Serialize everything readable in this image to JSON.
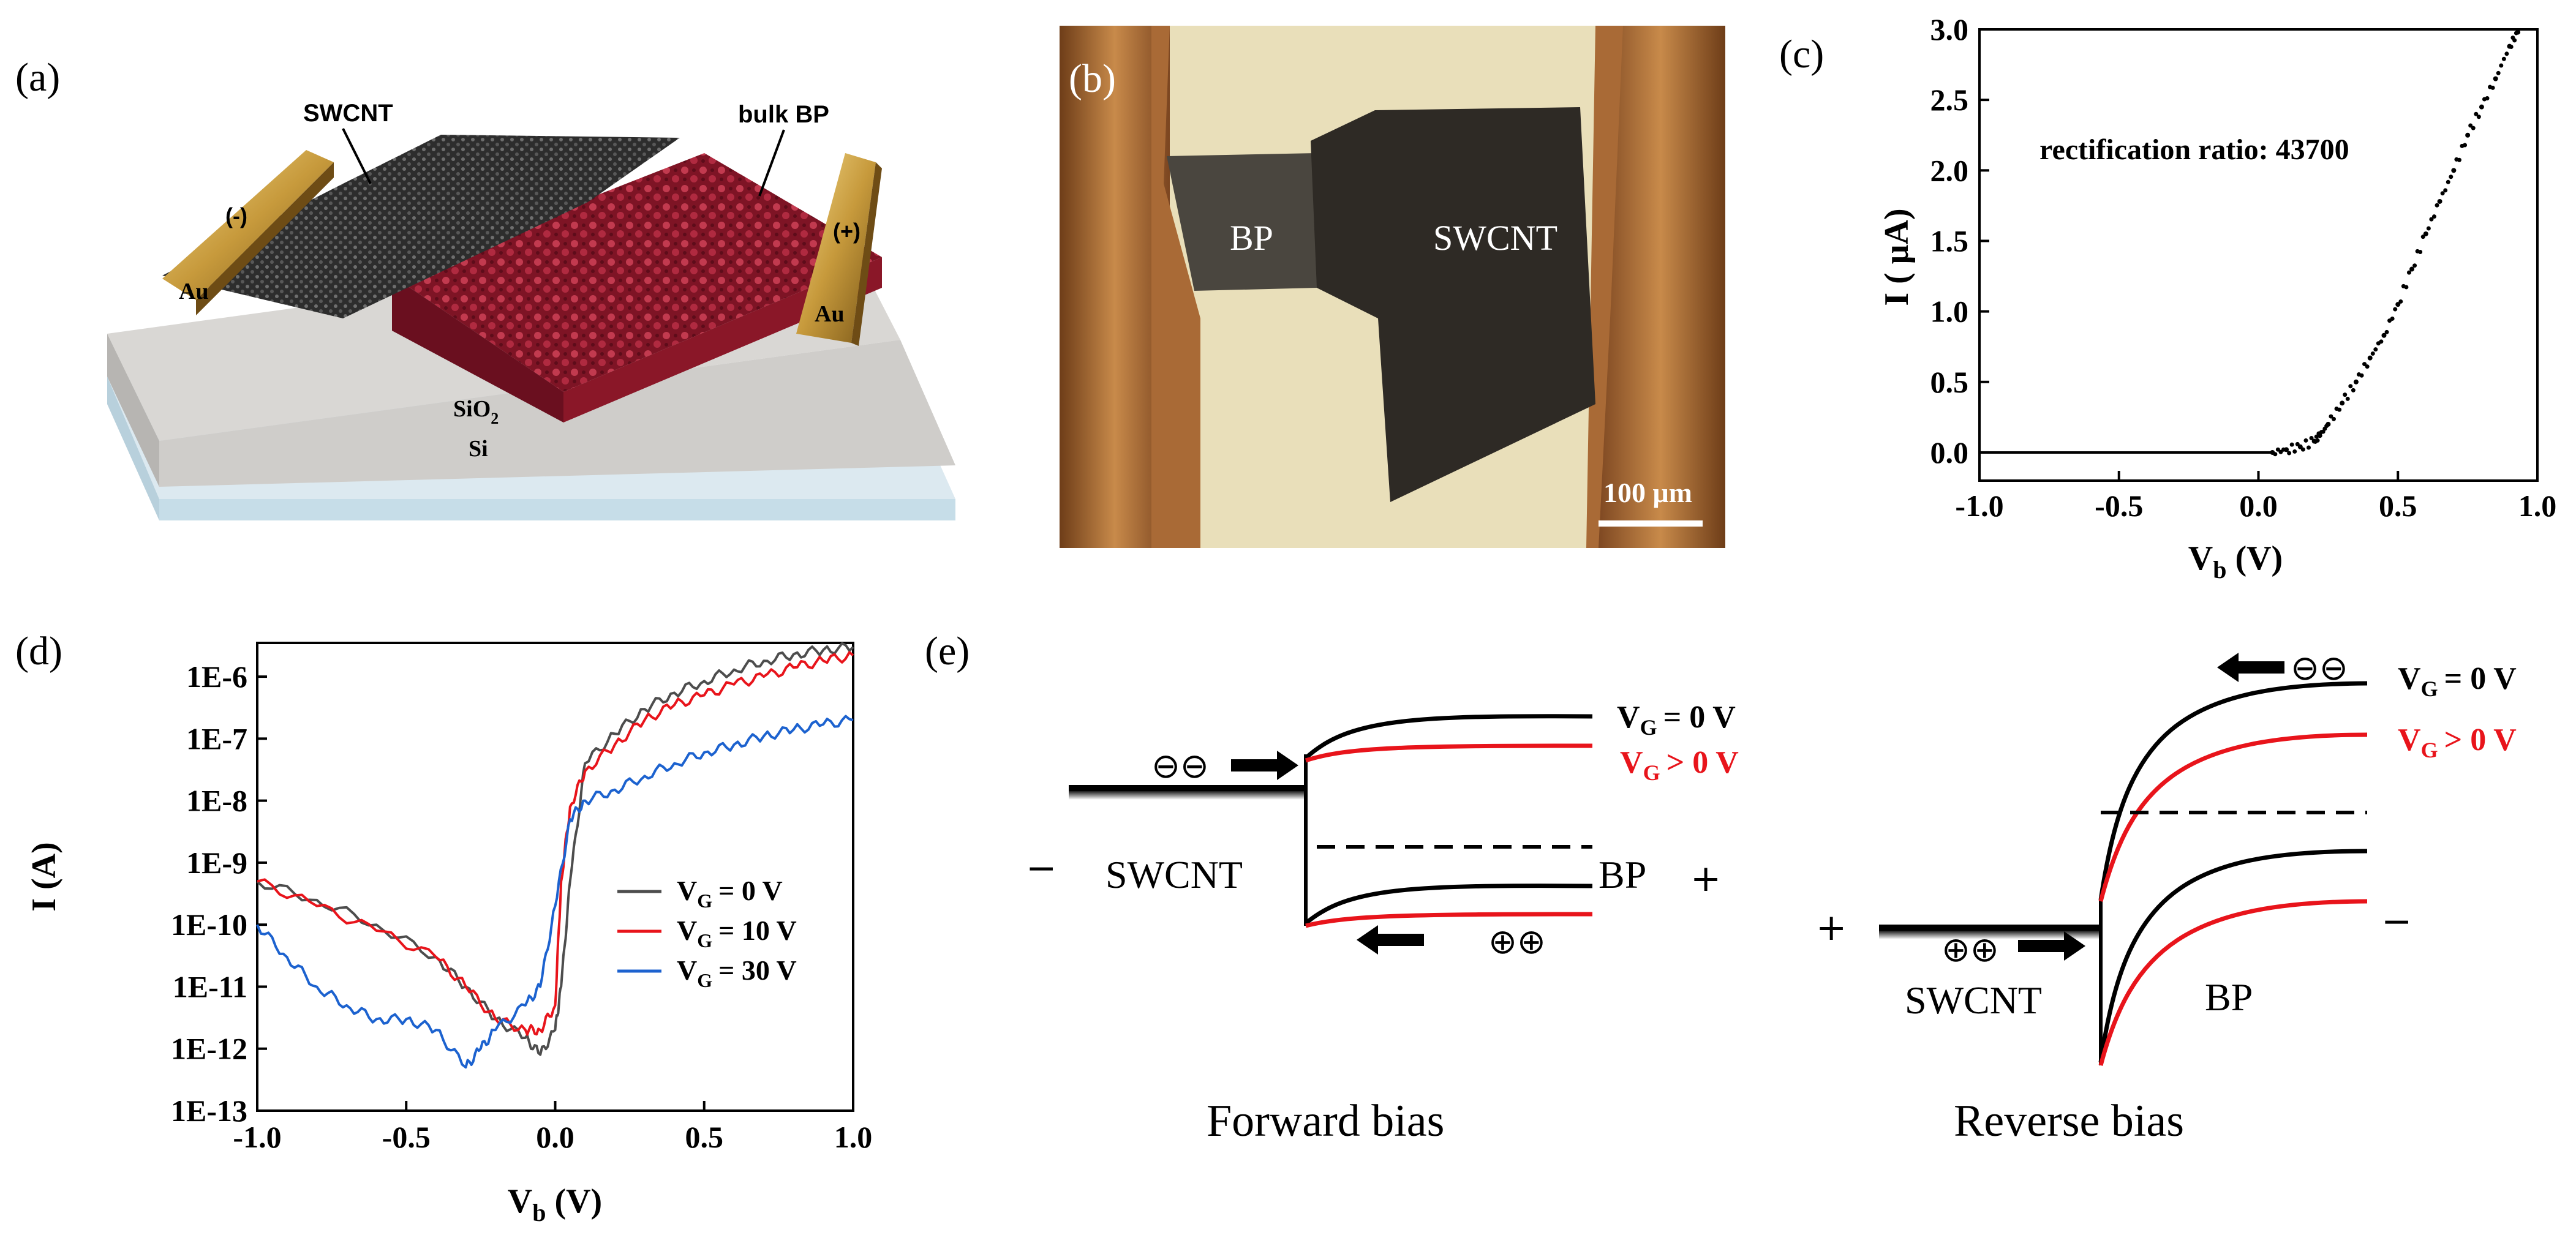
{
  "panel_labels": {
    "a": "(a)",
    "b": "(b)",
    "c": "(c)",
    "d": "(d)",
    "e": "(e)"
  },
  "panel_a": {
    "swcnt": "SWCNT",
    "bulk_bp": "bulk BP",
    "neg": "(-)",
    "pos": "(+)",
    "au_left": "Au",
    "au_right": "Au",
    "sio2_main": "SiO",
    "sio2_sub": "2",
    "si": "Si",
    "colors": {
      "bp": "#9b1b2f",
      "swcnt": "#3a3a3a",
      "au": "#c79a3c",
      "sio2": "#cfcdca",
      "si": "#c6dde8"
    }
  },
  "panel_b": {
    "bp": "BP",
    "swcnt": "SWCNT",
    "scale": "100 μm",
    "colors": {
      "electrode": "#b0713a",
      "substrate": "#efe6c8",
      "flake": "#2e2a25"
    }
  },
  "panel_c": {
    "annotation": "rectification ratio: 43700"
  },
  "panel_d": {
    "legend_prefix": "V"
  },
  "panel_e": {
    "fwd": {
      "vg0": "= 0 V",
      "vgp": "> 0 V",
      "minus": "−",
      "plus": "+",
      "swcnt": "SWCNT",
      "bp": "BP",
      "title": "Forward bias",
      "e_carriers": "⊖⊖",
      "h_carriers": "⊕⊕"
    },
    "rev": {
      "vg0": "= 0 V",
      "vgp": "> 0 V",
      "plus": "+",
      "minus": "−",
      "swcnt": "SWCNT",
      "bp": "BP",
      "title": "Reverse bias",
      "e_carriers": "⊖⊖",
      "h_carriers": "⊕⊕"
    },
    "colors": {
      "vg0": "#000000",
      "vgp": "#e8141b"
    }
  },
  "chart_data": [
    {
      "id": "c",
      "type": "scatter",
      "title": "",
      "xlabel_main": "V",
      "xlabel_sub": "b",
      "xlabel_unit": " (V)",
      "ylabel": "I ( μA)",
      "xlim": [
        -1.0,
        1.0
      ],
      "ylim": [
        -0.2,
        3.0
      ],
      "xticks": [
        "-1.0",
        "-0.5",
        "0.0",
        "0.5",
        "1.0"
      ],
      "xtick_values": [
        -1.0,
        -0.5,
        0.0,
        0.5,
        1.0
      ],
      "yticks": [
        "0.0",
        "0.5",
        "1.0",
        "1.5",
        "2.0",
        "2.5",
        "3.0"
      ],
      "ytick_values": [
        0.0,
        0.5,
        1.0,
        1.5,
        2.0,
        2.5,
        3.0
      ],
      "x": [
        -1.0,
        0.05,
        0.1,
        0.15,
        0.2,
        0.22,
        0.25,
        0.3,
        0.35,
        0.4,
        0.45,
        0.5,
        0.55,
        0.6,
        0.65,
        0.7,
        0.75,
        0.8,
        0.85,
        0.9,
        0.93
      ],
      "y": [
        0.0,
        0.0,
        0.02,
        0.04,
        0.08,
        0.12,
        0.2,
        0.35,
        0.5,
        0.67,
        0.83,
        1.05,
        1.3,
        1.55,
        1.78,
        2.0,
        2.25,
        2.45,
        2.65,
        2.88,
        2.98
      ]
    },
    {
      "id": "d",
      "type": "line",
      "yscale": "log",
      "title": "",
      "xlabel_main": "V",
      "xlabel_sub": "b",
      "xlabel_unit": " (V)",
      "ylabel": "I (A)",
      "xlim": [
        -1.0,
        1.0
      ],
      "ylim": [
        1e-13,
        3.5e-06
      ],
      "xticks": [
        "-1.0",
        "-0.5",
        "0.0",
        "0.5",
        "1.0"
      ],
      "xtick_values": [
        -1.0,
        -0.5,
        0.0,
        0.5,
        1.0
      ],
      "yticks": [
        "1E-6",
        "1E-7",
        "1E-8",
        "1E-9",
        "1E-10",
        "1E-11",
        "1E-12",
        "1E-13"
      ],
      "ytick_values": [
        1e-06,
        1e-07,
        1e-08,
        1e-09,
        1e-10,
        1e-11,
        1e-12,
        1e-13
      ],
      "legend_position": "right",
      "series": [
        {
          "name": "V_G = 0 V",
          "legend_sub": "G",
          "legend_val": "=  0 V",
          "color": "#4d4d4d",
          "x": [
            -1.0,
            -0.8,
            -0.6,
            -0.4,
            -0.3,
            -0.2,
            -0.1,
            -0.05,
            0.0,
            0.02,
            0.05,
            0.1,
            0.2,
            0.3,
            0.4,
            0.5,
            0.6,
            0.7,
            0.8,
            0.9,
            1.0
          ],
          "y": [
            5e-10,
            2.5e-10,
            1e-10,
            3e-11,
            1e-11,
            3e-12,
            1.5e-12,
            8e-13,
            2e-12,
            1e-11,
            5e-10,
            4e-08,
            1.2e-07,
            3e-07,
            5.5e-07,
            8.5e-07,
            1.3e-06,
            1.8e-06,
            2.3e-06,
            2.7e-06,
            3e-06
          ]
        },
        {
          "name": "V_G = 10 V",
          "legend_sub": "G",
          "legend_val": "= 10 V",
          "color": "#e8141b",
          "x": [
            -1.0,
            -0.8,
            -0.6,
            -0.4,
            -0.3,
            -0.2,
            -0.1,
            -0.05,
            0.0,
            0.02,
            0.05,
            0.1,
            0.2,
            0.3,
            0.4,
            0.5,
            0.6,
            0.7,
            0.8,
            0.9,
            1.0
          ],
          "y": [
            5e-10,
            2e-10,
            8e-11,
            3e-11,
            1e-11,
            3e-12,
            2e-12,
            2e-12,
            5e-12,
            5e-10,
            8e-09,
            3e-08,
            8e-08,
            2e-07,
            3.5e-07,
            5e-07,
            7.5e-07,
            1e-06,
            1.4e-06,
            1.8e-06,
            2.2e-06
          ]
        },
        {
          "name": "V_G = 30 V",
          "legend_sub": "G",
          "legend_val": "= 30 V",
          "color": "#1c62cf",
          "x": [
            -1.0,
            -0.9,
            -0.8,
            -0.7,
            -0.6,
            -0.5,
            -0.4,
            -0.3,
            -0.25,
            -0.2,
            -0.1,
            -0.05,
            0.0,
            0.05,
            0.1,
            0.2,
            0.3,
            0.4,
            0.5,
            0.6,
            0.7,
            0.8,
            0.9,
            1.0
          ],
          "y": [
            1e-10,
            3e-11,
            1e-11,
            5e-12,
            3e-12,
            3e-12,
            2e-12,
            5e-13,
            1e-12,
            2e-12,
            5e-12,
            1e-11,
            2e-10,
            5e-09,
            1e-08,
            1.5e-08,
            2.5e-08,
            4e-08,
            6e-08,
            8e-08,
            1.1e-07,
            1.4e-07,
            1.7e-07,
            2e-07
          ]
        }
      ]
    }
  ]
}
